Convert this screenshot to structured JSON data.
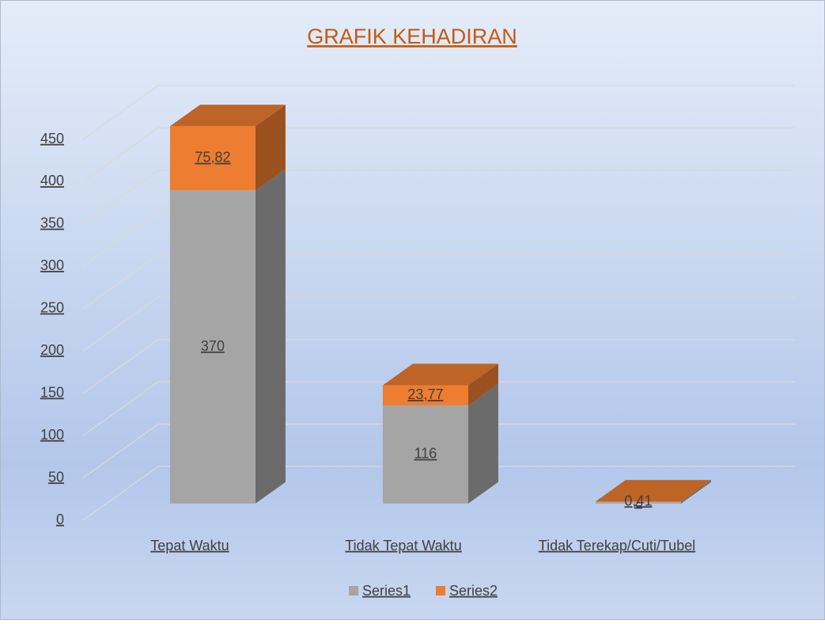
{
  "chart_data": {
    "type": "bar3d_stacked",
    "title": "GRAFIK KEHADIRAN",
    "categories": [
      "Tepat Waktu",
      "Tidak Tepat Waktu",
      "Tidak Terekap/Cuti/Tubel"
    ],
    "series": [
      {
        "name": "Series1",
        "color": "#a5a5a5",
        "values": [
          370,
          116,
          2
        ],
        "value_labels": [
          "370",
          "116",
          "2"
        ]
      },
      {
        "name": "Series2",
        "color": "#ed7d31",
        "values": [
          75.82,
          23.77,
          0.41
        ],
        "value_labels": [
          "75,82",
          "23,77",
          "0,41"
        ]
      }
    ],
    "ylim": [
      0,
      450
    ],
    "yticks": [
      0,
      50,
      100,
      150,
      200,
      250,
      300,
      350,
      400,
      450
    ],
    "grid": true,
    "legend": "bottom"
  }
}
